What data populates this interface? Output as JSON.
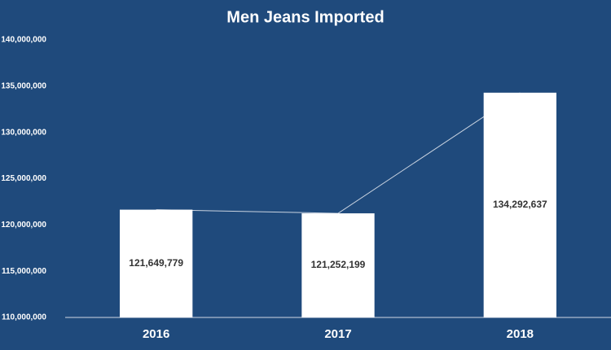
{
  "chart_data": {
    "type": "bar",
    "title": "Men Jeans Imported",
    "categories": [
      "2016",
      "2017",
      "2018"
    ],
    "values": [
      121649779,
      121252199,
      134292637
    ],
    "value_labels": [
      "121,649,779",
      "121,252,199",
      "134,292,637"
    ],
    "color": "#ffffff",
    "line_color": "#c9d3e0",
    "background": "#1f4a7c",
    "ylim": [
      110000000,
      140000000
    ],
    "yticks": [
      {
        "value": 110000000,
        "label": "110,000,000"
      },
      {
        "value": 115000000,
        "label": "115,000,000"
      },
      {
        "value": 120000000,
        "label": "120,000,000"
      },
      {
        "value": 125000000,
        "label": "125,000,000"
      },
      {
        "value": 130000000,
        "label": "130,000,000"
      },
      {
        "value": 135000000,
        "label": "135,000,000"
      },
      {
        "value": 140000000,
        "label": "140,000,000"
      }
    ],
    "grid": false
  }
}
